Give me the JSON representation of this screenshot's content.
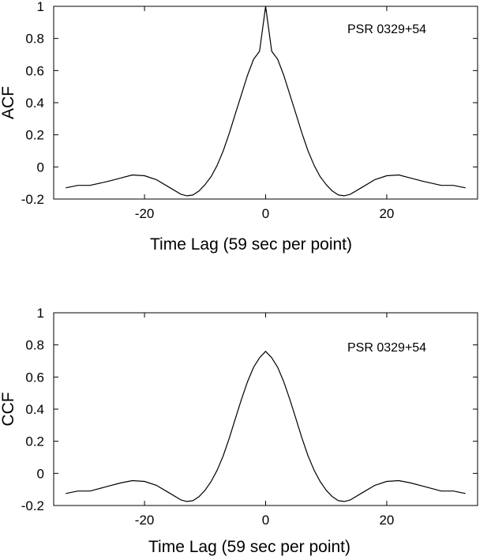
{
  "chart_data": [
    {
      "type": "line",
      "ylabel": "ACF",
      "xlabel": "Time Lag (59 sec per point)",
      "annotation": "PSR 0329+54",
      "xlim": [
        -35,
        35
      ],
      "ylim": [
        -0.2,
        1
      ],
      "xticks": [
        -20,
        0,
        20
      ],
      "xtick_labels": [
        "-20",
        "0",
        "20"
      ],
      "yticks": [
        -0.2,
        0,
        0.2,
        0.4,
        0.6,
        0.8,
        1
      ],
      "ytick_labels": [
        "-0.2",
        "0",
        "0.2",
        "0.4",
        "0.6",
        "0.8",
        "1"
      ],
      "grid": false,
      "series": [
        {
          "x": [
            -33,
            -31,
            -29,
            -26,
            -24,
            -22,
            -20,
            -18,
            -16,
            -14,
            -13,
            -12,
            -11,
            -10,
            -9,
            -8,
            -7,
            -6,
            -5,
            -4,
            -3,
            -2,
            -1,
            0,
            1,
            2,
            3,
            4,
            5,
            6,
            7,
            8,
            9,
            10,
            11,
            12,
            13,
            14,
            16,
            18,
            20,
            22,
            24,
            26,
            29,
            31,
            33
          ],
          "y": [
            -0.13,
            -0.115,
            -0.115,
            -0.09,
            -0.07,
            -0.05,
            -0.055,
            -0.08,
            -0.125,
            -0.17,
            -0.18,
            -0.175,
            -0.15,
            -0.11,
            -0.06,
            0.01,
            0.1,
            0.21,
            0.33,
            0.45,
            0.57,
            0.67,
            0.72,
            1.0,
            0.72,
            0.67,
            0.57,
            0.45,
            0.33,
            0.21,
            0.1,
            0.01,
            -0.06,
            -0.11,
            -0.15,
            -0.175,
            -0.18,
            -0.17,
            -0.125,
            -0.08,
            -0.055,
            -0.05,
            -0.07,
            -0.09,
            -0.115,
            -0.115,
            -0.13
          ]
        }
      ]
    },
    {
      "type": "line",
      "ylabel": "CCF",
      "xlabel": "Time Lag (59 sec per point)",
      "annotation": "PSR 0329+54",
      "xlim": [
        -35,
        35
      ],
      "ylim": [
        -0.2,
        1
      ],
      "xticks": [
        -20,
        0,
        20
      ],
      "xtick_labels": [
        "-20",
        "0",
        "20"
      ],
      "yticks": [
        -0.2,
        0,
        0.2,
        0.4,
        0.6,
        0.8,
        1
      ],
      "ytick_labels": [
        "-0.2",
        "0",
        "0.2",
        "0.4",
        "0.6",
        "0.8",
        "1"
      ],
      "grid": false,
      "series": [
        {
          "x": [
            -33,
            -31,
            -29,
            -26,
            -24,
            -22,
            -20,
            -18,
            -16,
            -14,
            -13,
            -12,
            -11,
            -10,
            -9,
            -8,
            -7,
            -6,
            -5,
            -4,
            -3,
            -2,
            -1,
            0,
            1,
            2,
            3,
            4,
            5,
            6,
            7,
            8,
            9,
            10,
            11,
            12,
            13,
            14,
            16,
            18,
            20,
            22,
            24,
            26,
            29,
            31,
            33
          ],
          "y": [
            -0.125,
            -0.11,
            -0.11,
            -0.08,
            -0.06,
            -0.045,
            -0.05,
            -0.075,
            -0.12,
            -0.165,
            -0.175,
            -0.17,
            -0.145,
            -0.105,
            -0.05,
            0.02,
            0.11,
            0.22,
            0.34,
            0.46,
            0.57,
            0.66,
            0.72,
            0.76,
            0.72,
            0.66,
            0.57,
            0.46,
            0.34,
            0.22,
            0.11,
            0.02,
            -0.05,
            -0.105,
            -0.145,
            -0.17,
            -0.175,
            -0.165,
            -0.12,
            -0.075,
            -0.05,
            -0.045,
            -0.06,
            -0.08,
            -0.11,
            -0.11,
            -0.125
          ]
        }
      ]
    }
  ]
}
